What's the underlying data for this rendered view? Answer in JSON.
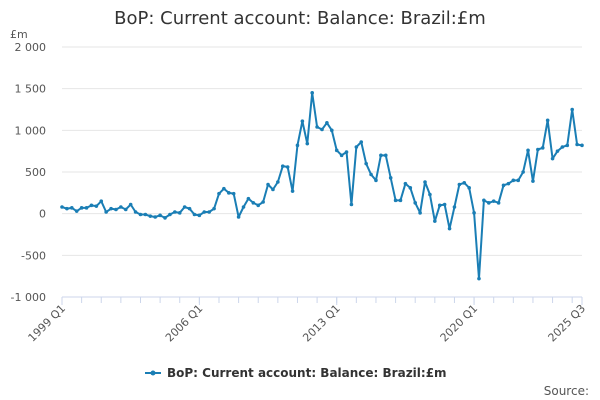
{
  "chart_data": {
    "type": "line",
    "title": "BoP: Current account: Balance: Brazil:£m",
    "unit_label": "£m",
    "source_label": "Source:",
    "ylim": [
      -1000,
      2000
    ],
    "yticks": [
      -1000,
      -500,
      0,
      500,
      1000,
      1500,
      2000
    ],
    "ytick_labels": [
      "-1 000",
      "-500",
      "0",
      "500",
      "1 000",
      "1 500",
      "2 000"
    ],
    "xtick_labels": [
      "1999 Q1",
      "2006 Q1",
      "2013 Q1",
      "2020 Q1",
      "2025 Q3"
    ],
    "xtick_indices": [
      0,
      28,
      56,
      84,
      106
    ],
    "grid": true,
    "legend_position": "bottom-center",
    "color": "#1a7eb5",
    "series": [
      {
        "name": "BoP: Current account: Balance: Brazil:£m",
        "values": [
          80,
          60,
          70,
          30,
          70,
          70,
          100,
          90,
          150,
          20,
          60,
          50,
          80,
          50,
          110,
          20,
          -10,
          -10,
          -30,
          -40,
          -20,
          -50,
          -10,
          20,
          10,
          80,
          60,
          -10,
          -20,
          20,
          20,
          60,
          240,
          300,
          250,
          240,
          -40,
          80,
          180,
          130,
          100,
          140,
          350,
          290,
          380,
          570,
          560,
          270,
          820,
          1110,
          840,
          1450,
          1040,
          1010,
          1090,
          1000,
          760,
          700,
          740,
          110,
          800,
          860,
          600,
          470,
          400,
          700,
          700,
          430,
          160,
          160,
          360,
          310,
          130,
          10,
          380,
          230,
          -90,
          100,
          110,
          -180,
          80,
          350,
          370,
          310,
          10,
          -780,
          160,
          130,
          150,
          130,
          340,
          360,
          400,
          400,
          500,
          760,
          390,
          770,
          790,
          1120,
          660,
          750,
          800,
          820,
          1250,
          830,
          820
        ]
      }
    ]
  }
}
